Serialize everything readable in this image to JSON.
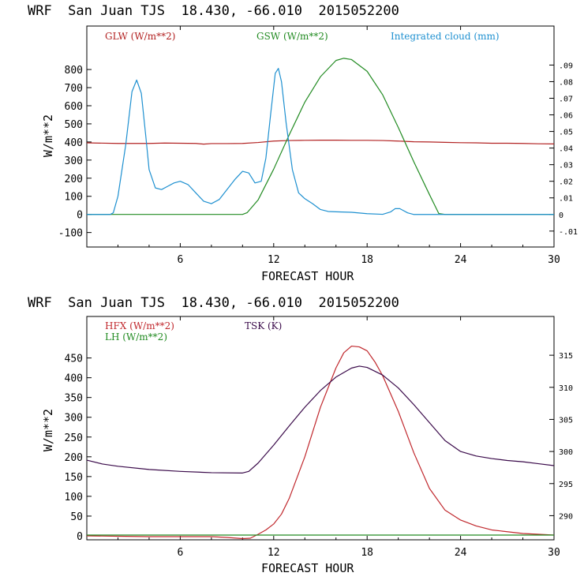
{
  "chart_data": [
    {
      "type": "line",
      "title": "WRF  San Juan TJS  18.430, -66.010  2015052200",
      "xlabel": "FORECAST HOUR",
      "ylabel": "W/m**2",
      "xlim": [
        0,
        30
      ],
      "ylim": [
        -180,
        1040
      ],
      "xticks": [
        "6",
        "12",
        "18",
        "24",
        "30"
      ],
      "xtick_values": [
        6,
        12,
        18,
        24,
        30
      ],
      "yticks": [
        "-100",
        "0",
        "100",
        "200",
        "300",
        "400",
        "500",
        "600",
        "700",
        "800"
      ],
      "ytick_values": [
        -100,
        0,
        100,
        200,
        300,
        400,
        500,
        600,
        700,
        800
      ],
      "y2lim": [
        -0.0196,
        0.1135
      ],
      "y2ticks": [
        "-.01",
        "0",
        ".01",
        ".02",
        ".03",
        ".04",
        ".05",
        ".06",
        ".07",
        ".08",
        ".09"
      ],
      "y2tick_values": [
        -0.01,
        0,
        0.01,
        0.02,
        0.03,
        0.04,
        0.05,
        0.06,
        0.07,
        0.08,
        0.09
      ],
      "legend": [
        "GLW (W/m**2)",
        "GSW (W/m**2)",
        "Integrated cloud (mm)"
      ],
      "series": [
        {
          "name": "GLW (W/m**2)",
          "color": "#b22222",
          "axis": "left",
          "x": [
            0,
            2,
            4,
            5,
            6,
            7,
            7.5,
            8,
            9,
            10,
            11,
            12,
            13,
            14,
            15,
            16,
            17,
            18,
            19,
            20,
            21,
            22,
            23,
            24,
            25,
            26,
            27,
            28,
            29,
            30
          ],
          "y": [
            395,
            392,
            392,
            394,
            393,
            392,
            388,
            391,
            391,
            392,
            397,
            405,
            408,
            409,
            410,
            410,
            409,
            409,
            408,
            405,
            401,
            400,
            398,
            396,
            395,
            393,
            393,
            392,
            390,
            389
          ]
        },
        {
          "name": "GSW (W/m**2)",
          "color": "#228b22",
          "axis": "left",
          "x": [
            0,
            10,
            10.3,
            11,
            12,
            13,
            14,
            15,
            16,
            16.5,
            17,
            18,
            19,
            20,
            21,
            22,
            22.6,
            23,
            30
          ],
          "y": [
            0,
            0,
            10,
            80,
            250,
            440,
            620,
            760,
            850,
            862,
            855,
            790,
            660,
            480,
            290,
            110,
            5,
            0,
            0
          ]
        },
        {
          "name": "Integrated cloud (mm)",
          "color": "#1e90d0",
          "axis": "right",
          "x": [
            0,
            1.5,
            1.7,
            2,
            2.5,
            2.9,
            3.2,
            3.5,
            3.8,
            4,
            4.4,
            4.8,
            5.2,
            5.6,
            6,
            6.5,
            7,
            7.5,
            8,
            8.5,
            9,
            9.5,
            10,
            10.4,
            10.8,
            11.2,
            11.5,
            11.8,
            12.1,
            12.3,
            12.5,
            12.8,
            13.2,
            13.6,
            14,
            14.5,
            15,
            15.5,
            16,
            17,
            18,
            19,
            19.5,
            19.8,
            20.1,
            20.6,
            21,
            30
          ],
          "y": [
            0,
            0,
            0.001,
            0.011,
            0.042,
            0.074,
            0.081,
            0.073,
            0.046,
            0.027,
            0.016,
            0.015,
            0.017,
            0.019,
            0.02,
            0.018,
            0.013,
            0.008,
            0.0065,
            0.009,
            0.015,
            0.021,
            0.026,
            0.025,
            0.019,
            0.02,
            0.034,
            0.06,
            0.085,
            0.088,
            0.08,
            0.055,
            0.027,
            0.013,
            0.0095,
            0.0065,
            0.003,
            0.0018,
            0.0016,
            0.0013,
            0.0005,
            0.0001,
            0.0015,
            0.0035,
            0.0035,
            0.001,
            0,
            0
          ]
        }
      ]
    },
    {
      "type": "line",
      "title": "WRF  San Juan TJS  18.430, -66.010  2015052200",
      "xlabel": "FORECAST HOUR",
      "ylabel": "W/m**2",
      "xlim": [
        0,
        30
      ],
      "ylim": [
        -10,
        555
      ],
      "xticks": [
        "6",
        "12",
        "18",
        "24",
        "30"
      ],
      "xtick_values": [
        6,
        12,
        18,
        24,
        30
      ],
      "yticks": [
        "0",
        "50",
        "100",
        "150",
        "200",
        "250",
        "300",
        "350",
        "400",
        "450"
      ],
      "ytick_values": [
        0,
        50,
        100,
        150,
        200,
        250,
        300,
        350,
        400,
        450
      ],
      "y2lim": [
        286.24,
        321.04
      ],
      "y2ticks": [
        "290",
        "295",
        "300",
        "305",
        "310",
        "315"
      ],
      "y2tick_values": [
        290,
        295,
        300,
        305,
        310,
        315
      ],
      "legend": [
        "HFX (W/m**2)",
        "LH (W/m**2)",
        "TSK (K)"
      ],
      "series": [
        {
          "name": "HFX (W/m**2)",
          "color": "#c0282d",
          "axis": "left",
          "x": [
            0,
            2,
            4,
            6,
            8,
            9,
            10,
            10.5,
            11,
            11.5,
            12,
            12.5,
            13,
            14,
            15,
            16,
            16.5,
            17,
            17.5,
            18,
            18.5,
            19,
            20,
            21,
            22,
            23,
            24,
            25,
            26,
            28,
            30
          ],
          "y": [
            0,
            -1,
            -2,
            -2,
            -2,
            -4,
            -7,
            -6,
            4,
            15,
            30,
            55,
            95,
            200,
            325,
            425,
            463,
            480,
            478,
            468,
            440,
            405,
            315,
            210,
            120,
            65,
            40,
            25,
            15,
            6,
            2
          ]
        },
        {
          "name": "LH (W/m**2)",
          "color": "#228b22",
          "axis": "left",
          "x": [
            0,
            30
          ],
          "y": [
            2,
            2
          ]
        },
        {
          "name": "TSK (K)",
          "color": "#3a0a4a",
          "axis": "right",
          "x": [
            0,
            1,
            2,
            4,
            6,
            8,
            10,
            10.4,
            11,
            12,
            13,
            14,
            15,
            16,
            17,
            17.5,
            18,
            19,
            20,
            21,
            22,
            23,
            24,
            25,
            26,
            27,
            28,
            29,
            30
          ],
          "y": [
            298.65,
            298.05,
            297.7,
            297.2,
            296.9,
            296.7,
            296.65,
            296.9,
            298.2,
            301.0,
            304.0,
            306.9,
            309.5,
            311.6,
            313.0,
            313.3,
            313.1,
            311.9,
            309.9,
            307.3,
            304.5,
            301.7,
            300.0,
            299.3,
            298.9,
            298.6,
            298.4,
            298.1,
            297.8
          ]
        }
      ]
    }
  ]
}
